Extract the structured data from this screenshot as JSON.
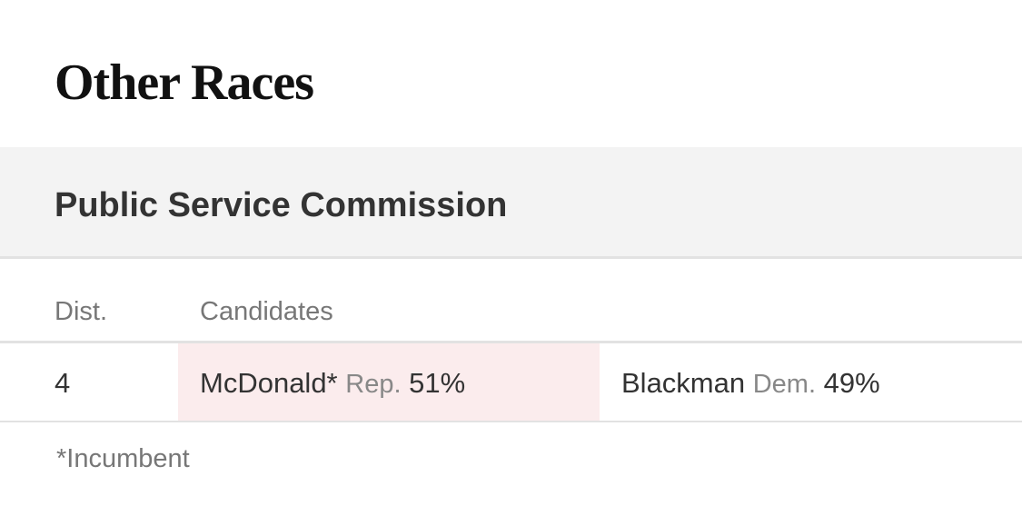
{
  "title": "Other Races",
  "section": {
    "title": "Public Service Commission",
    "table": {
      "header": [
        "Dist.",
        "Candidates"
      ],
      "rows": [
        {
          "dist": "4",
          "candidates": [
            {
              "name": "McDonald*",
              "party": "Rep.",
              "pct": "51%",
              "winner": true
            },
            {
              "name": "Blackman",
              "party": "Dem.",
              "pct": "49%",
              "winner": false
            }
          ]
        }
      ]
    },
    "footnote": "*Incumbent"
  }
}
